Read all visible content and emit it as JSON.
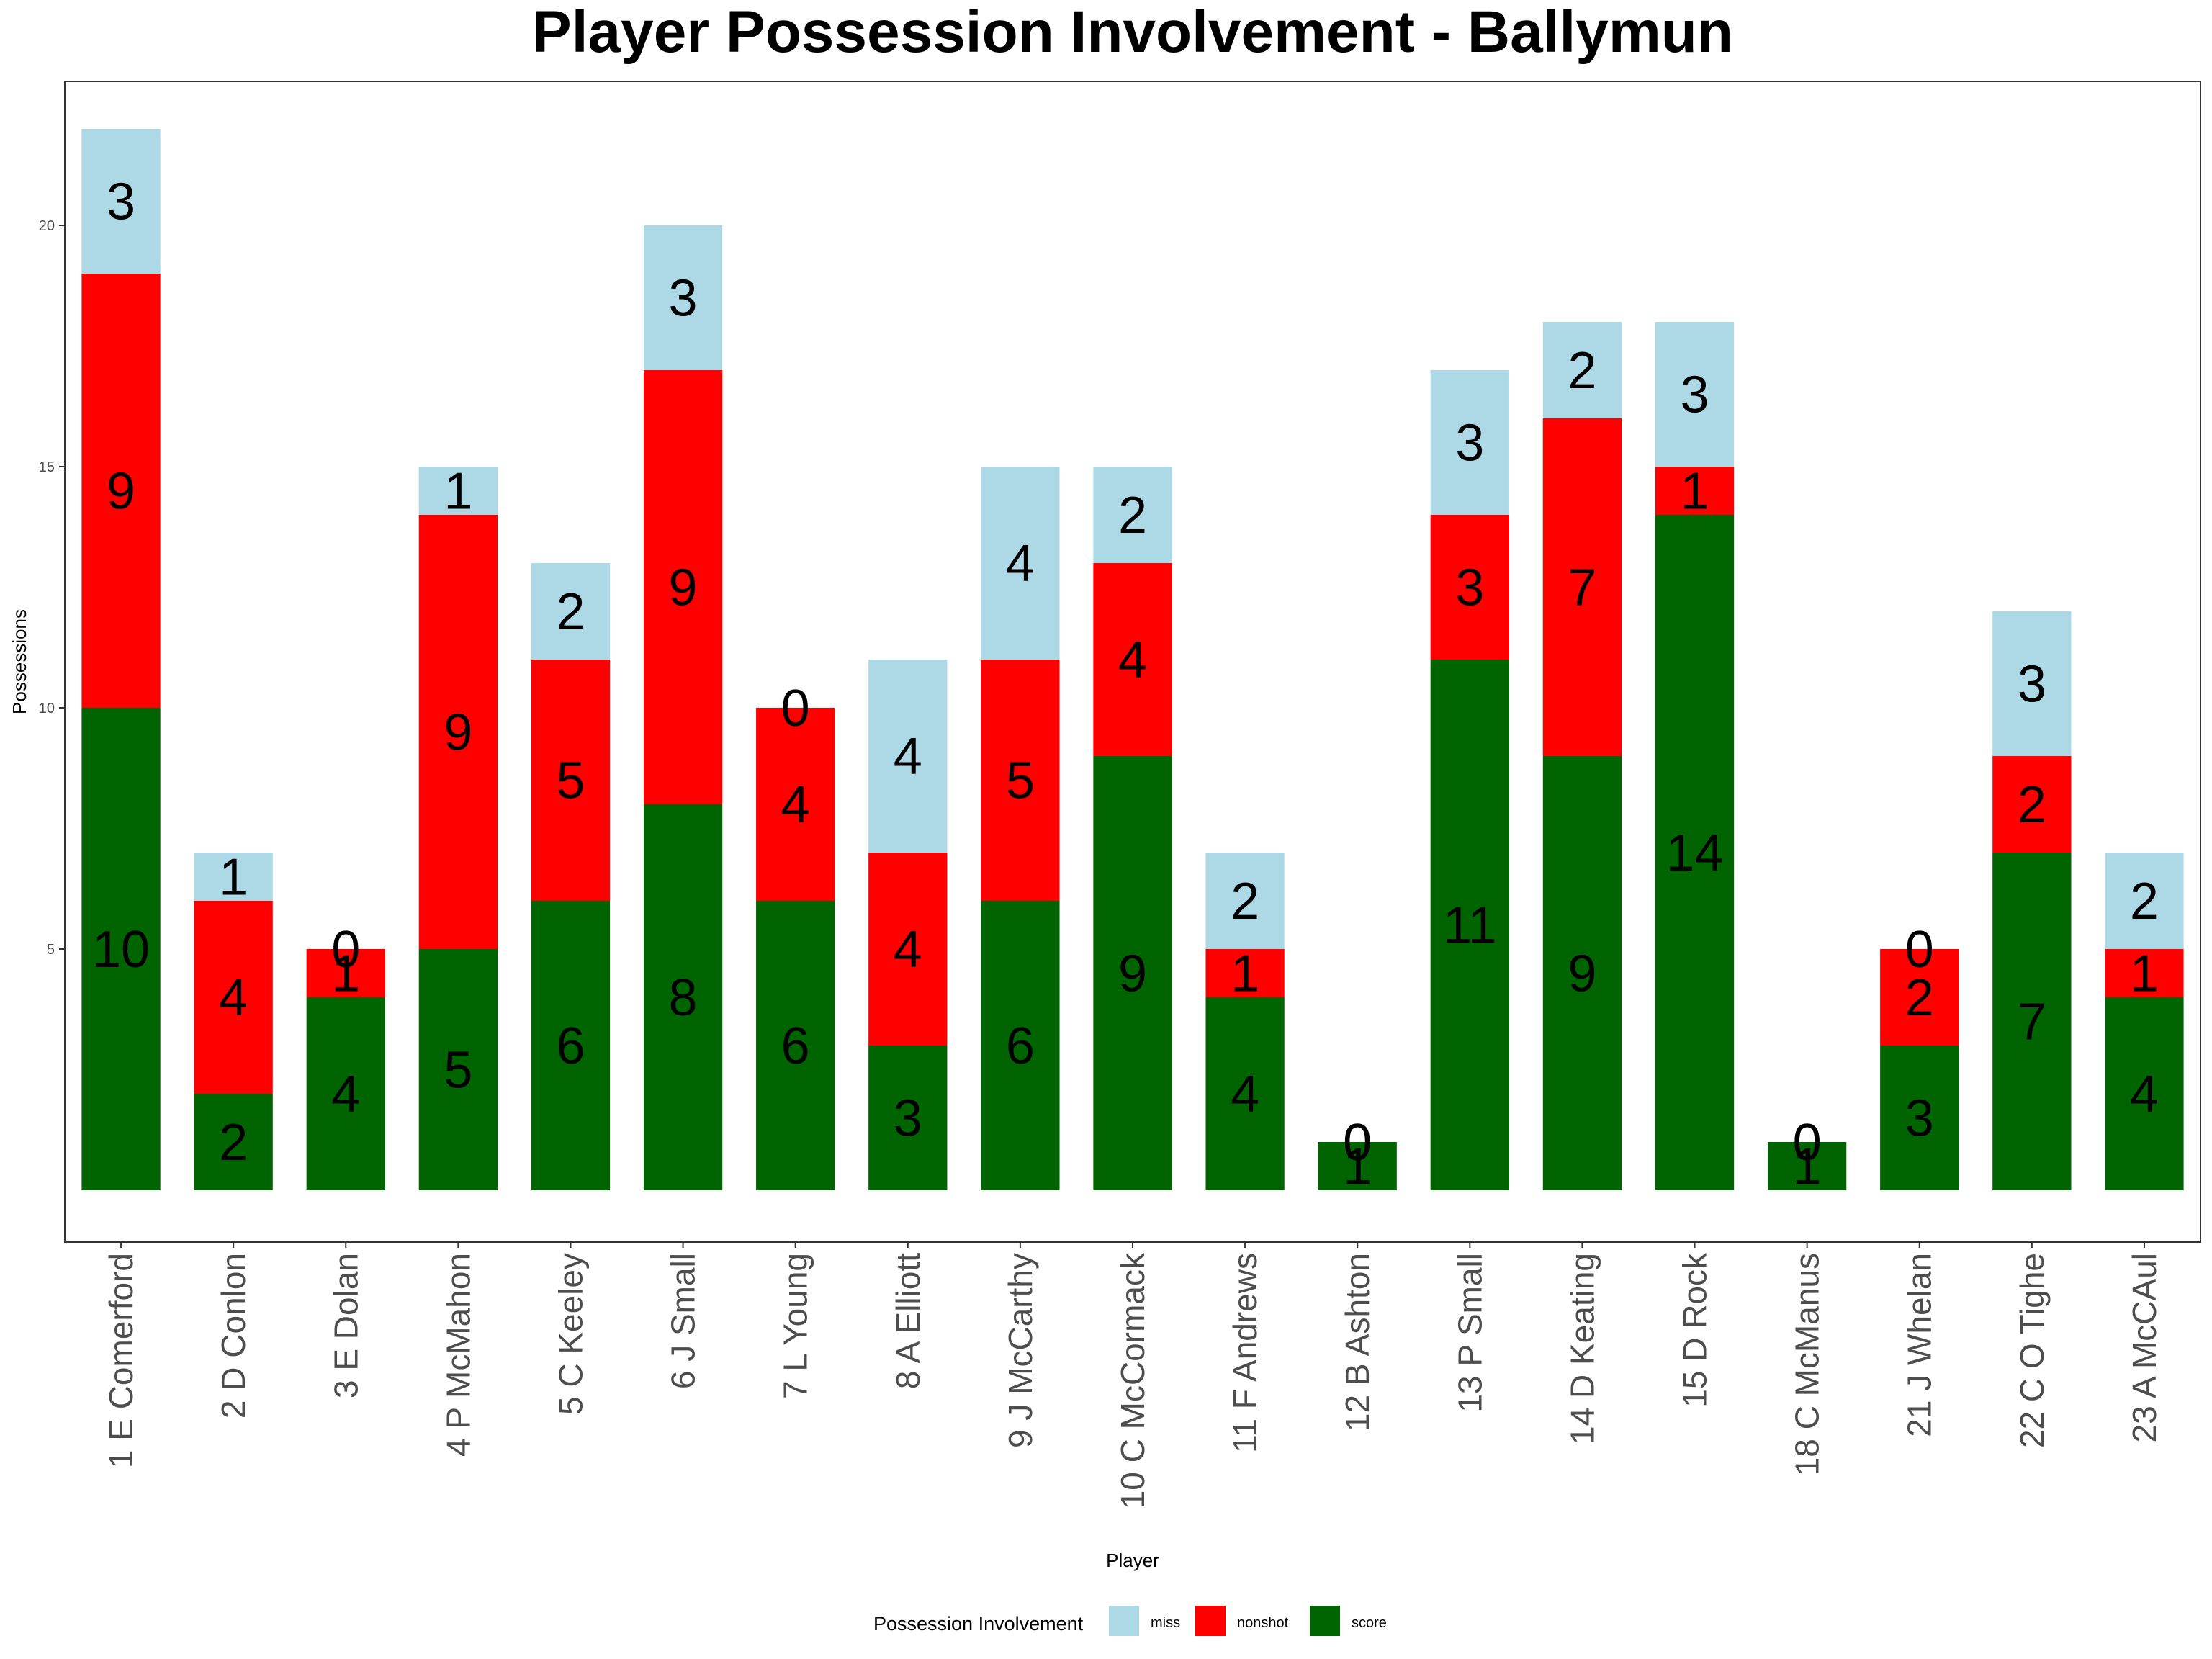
{
  "chart_data": {
    "type": "bar",
    "stacked": true,
    "title": "Player Possession Involvement - Ballymun",
    "xlabel": "Player",
    "ylabel": "Possessions",
    "ylim": [
      0,
      22
    ],
    "yticks": [
      5,
      10,
      15,
      20
    ],
    "grid": false,
    "legend": {
      "title": "Possession Involvement",
      "position": "bottom"
    },
    "categories": [
      "1 E Comerford",
      "2 D Conlon",
      "3 E Dolan",
      "4 P McMahon",
      "5 C Keeley",
      "6 J Small",
      "7 L Young",
      "8 A Elliott",
      "9 J McCarthy",
      "10 C McCormack",
      "11 F Andrews",
      "12 B Ashton",
      "13 P Small",
      "14 D Keating",
      "15 D Rock",
      "18 C McManus",
      "21 J Whelan",
      "22 C O Tighe",
      "23 A McCAul"
    ],
    "series": [
      {
        "name": "score",
        "color": "#006400",
        "values": [
          10,
          2,
          4,
          5,
          6,
          8,
          6,
          3,
          6,
          9,
          4,
          1,
          11,
          9,
          14,
          1,
          3,
          7,
          4
        ]
      },
      {
        "name": "nonshot",
        "color": "#ff0000",
        "values": [
          9,
          4,
          1,
          9,
          5,
          9,
          4,
          4,
          5,
          4,
          1,
          0,
          3,
          7,
          1,
          0,
          2,
          2,
          1
        ]
      },
      {
        "name": "miss",
        "color": "#add8e6",
        "values": [
          3,
          1,
          0,
          1,
          2,
          3,
          0,
          4,
          4,
          2,
          2,
          0,
          3,
          2,
          3,
          0,
          0,
          3,
          2
        ]
      }
    ],
    "legend_order": [
      "miss",
      "nonshot",
      "score"
    ]
  }
}
